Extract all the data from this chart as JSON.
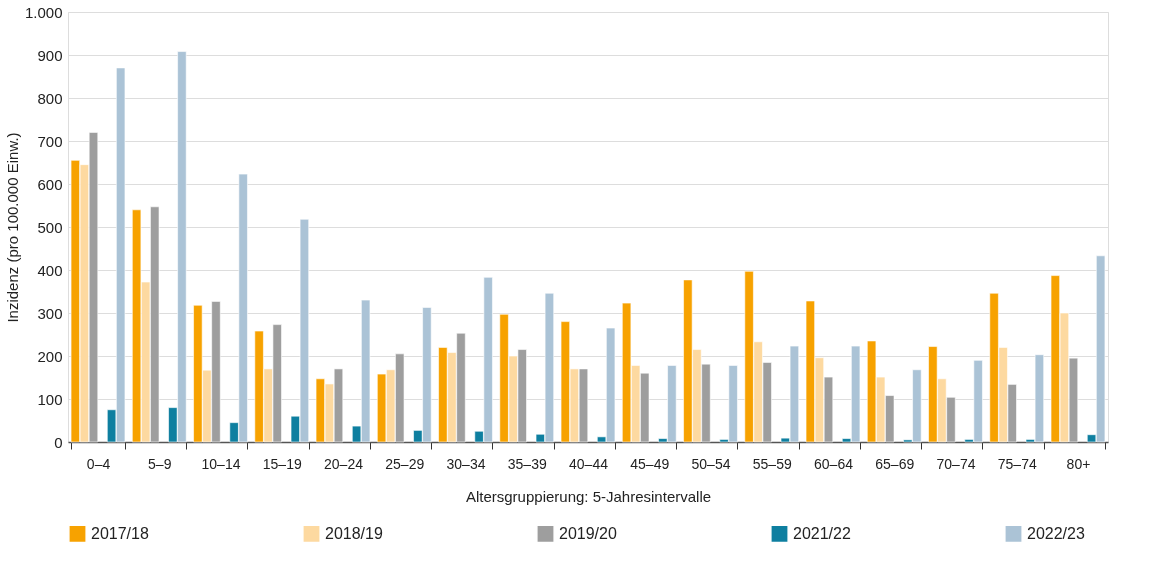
{
  "chart_data": {
    "type": "bar",
    "xlabel": "Altersgruppierung: 5-Jahresintervalle",
    "ylabel": "Inzidenz (pro 100.000 Einw.)",
    "categories": [
      "0–4",
      "5–9",
      "10–14",
      "15–19",
      "20–24",
      "25–29",
      "30–34",
      "35–39",
      "40–44",
      "45–49",
      "50–54",
      "55–59",
      "60–64",
      "65–69",
      "70–74",
      "75–74",
      "80+"
    ],
    "series": [
      {
        "name": "2017/18",
        "color": "#f7a200",
        "values": [
          655,
          540,
          318,
          258,
          147,
          158,
          220,
          297,
          280,
          323,
          377,
          397,
          328,
          235,
          222,
          346,
          387
        ]
      },
      {
        "name": "2018/19",
        "color": "#fdd9a0",
        "values": [
          645,
          372,
          167,
          170,
          135,
          168,
          208,
          200,
          170,
          178,
          215,
          233,
          196,
          151,
          147,
          220,
          300
        ]
      },
      {
        "name": "2019/20",
        "color": "#9e9e9e",
        "values": [
          720,
          547,
          327,
          273,
          170,
          205,
          253,
          215,
          170,
          160,
          181,
          185,
          151,
          108,
          104,
          134,
          195
        ]
      },
      {
        "name": "2021/22",
        "color": "#0e7fa0",
        "values": [
          75,
          80,
          45,
          60,
          37,
          27,
          25,
          18,
          12,
          8,
          6,
          9,
          8,
          5,
          6,
          6,
          17
        ]
      },
      {
        "name": "2022/23",
        "color": "#abc3d6",
        "values": [
          870,
          908,
          623,
          518,
          330,
          313,
          383,
          346,
          265,
          178,
          178,
          223,
          223,
          168,
          190,
          203,
          433
        ]
      }
    ],
    "ylim": [
      0,
      1000
    ],
    "yticks": [
      0,
      100,
      200,
      300,
      400,
      500,
      600,
      700,
      800,
      900,
      {
        "value": 1000,
        "label": "1.000"
      }
    ],
    "grid": "y",
    "legend": "bottom"
  }
}
